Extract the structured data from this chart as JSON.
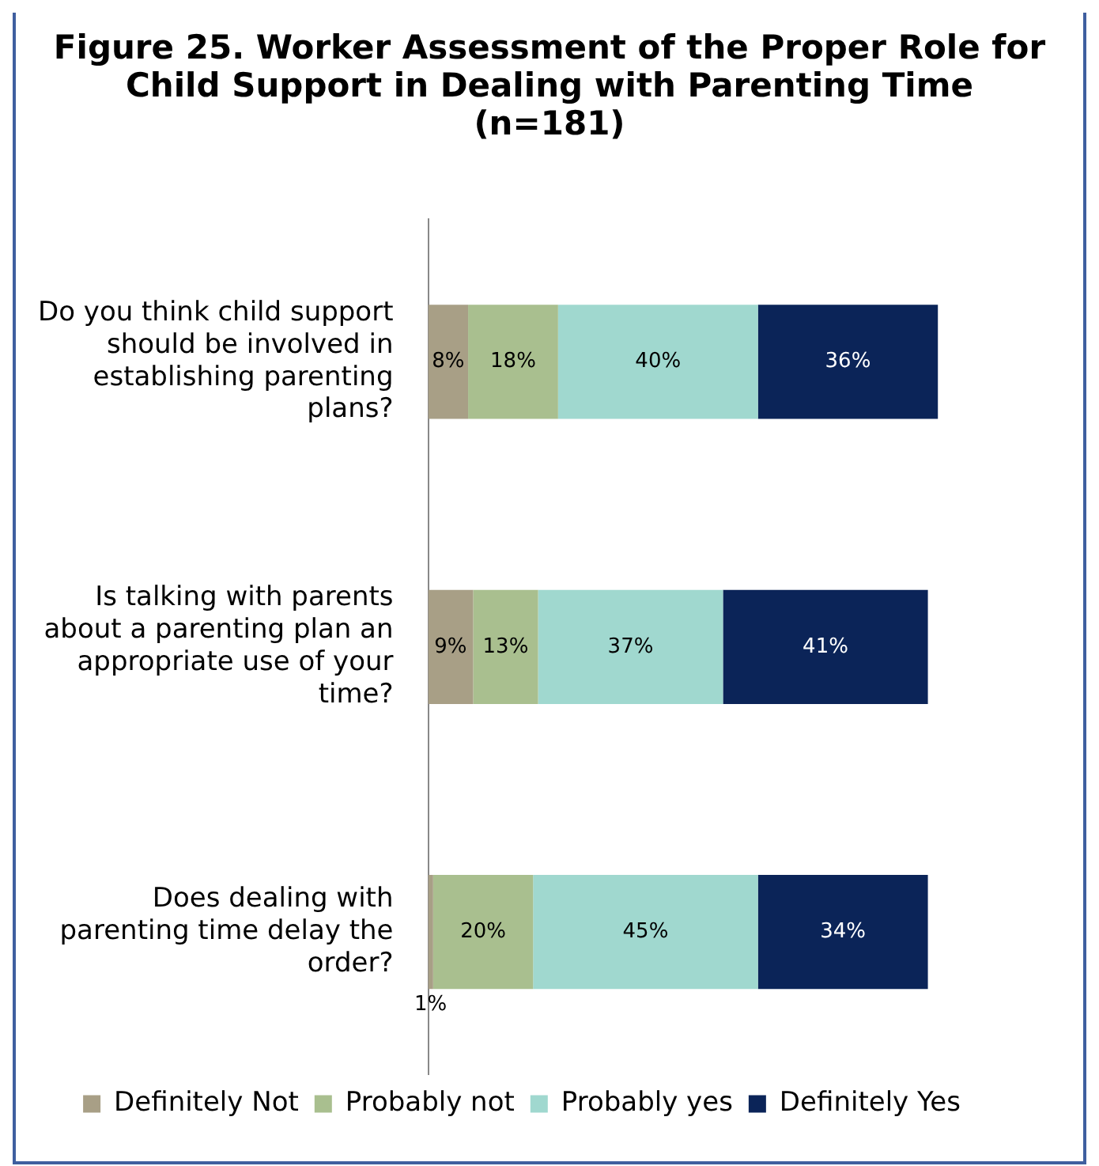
{
  "chart_data": {
    "type": "bar",
    "orientation": "horizontal",
    "stacked": true,
    "title": "Figure 25.  Worker Assessment of the Proper Role for Child Support in Dealing with Parenting Time (n=181)",
    "categories": [
      "Do you think child support should be involved in establishing parenting plans?",
      "Is talking with parents about a parenting plan an appropriate use of your time?",
      "Does dealing with parenting time delay the order?"
    ],
    "series": [
      {
        "name": "Definitely Not",
        "color": "#a89f86",
        "values": [
          8,
          9,
          1
        ],
        "value_labels": [
          "8%",
          "9%",
          "1%"
        ]
      },
      {
        "name": "Probably not",
        "color": "#a9bf8f",
        "values": [
          18,
          13,
          20
        ],
        "value_labels": [
          "18%",
          "13%",
          "20%"
        ]
      },
      {
        "name": "Probably yes",
        "color": "#a0d8cf",
        "values": [
          40,
          37,
          45
        ],
        "value_labels": [
          "40%",
          "37%",
          "45%"
        ]
      },
      {
        "name": "Definitely Yes",
        "color": "#0b2458",
        "values": [
          36,
          41,
          34
        ],
        "value_labels": [
          "36%",
          "41%",
          "34%"
        ]
      }
    ],
    "legend": "bottom",
    "grid": false
  }
}
